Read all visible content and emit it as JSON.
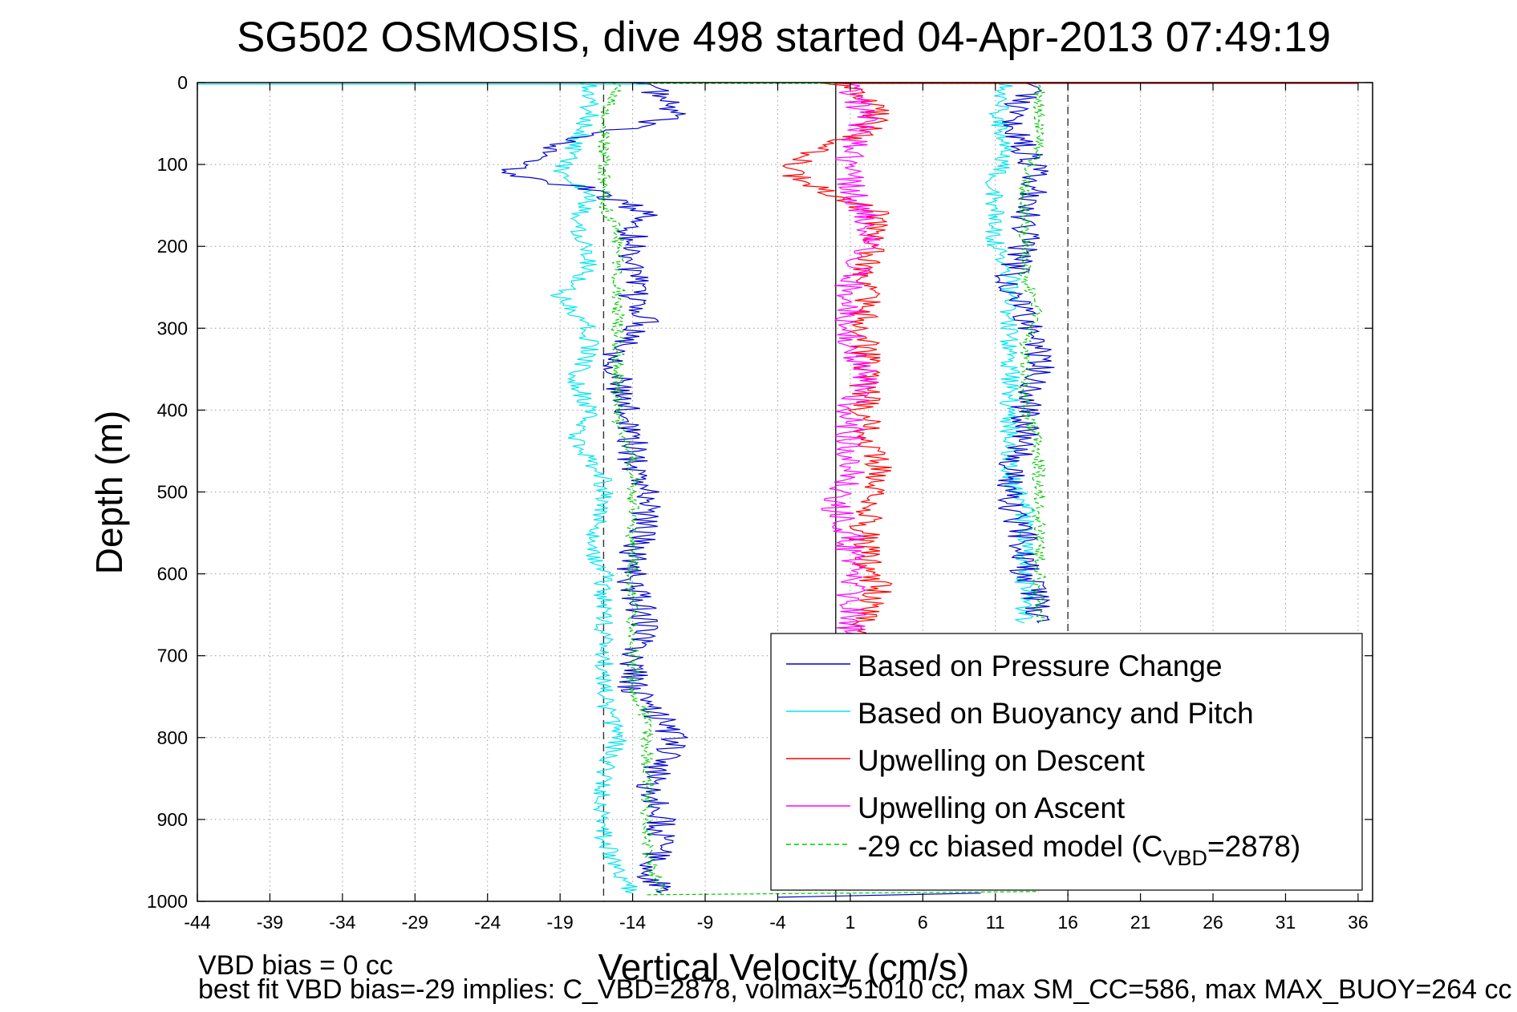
{
  "chart_data": {
    "type": "line",
    "title": "SG502 OSMOSIS, dive 498 started 04-Apr-2013 07:49:19",
    "xlabel": "Vertical Velocity (cm/s)",
    "ylabel": "Depth (m)",
    "xlim": [
      -44,
      37
    ],
    "ylim": [
      0,
      1000
    ],
    "y_reversed": true,
    "x_ticks": [
      -44,
      -39,
      -34,
      -29,
      -24,
      -19,
      -14,
      -9,
      -4,
      1,
      6,
      11,
      16,
      21,
      26,
      31,
      36
    ],
    "y_ticks": [
      0,
      100,
      200,
      300,
      400,
      500,
      600,
      700,
      800,
      900,
      1000
    ],
    "grid": true,
    "legend_position": "lower-right",
    "reference_lines": {
      "zero_x": 0,
      "dashed_x": [
        -16,
        16
      ]
    },
    "series": [
      {
        "name": "Based on Pressure Change",
        "color": "#0000cc",
        "segments": [
          {
            "depth": [
              0,
              40,
              70,
              95,
              110,
              130,
              160,
              180,
              200,
              230,
              260,
              290,
              330,
              380,
              420,
              460,
              500,
              540,
              580,
              620,
              660,
              700,
              740,
              780,
              800,
              830,
              860,
              900,
              930,
              960,
              990
            ],
            "x": [
              -13,
              -11,
              -18,
              -21,
              -23,
              -17,
              -13,
              -14,
              -14,
              -14,
              -14,
              -13,
              -15,
              -15,
              -14,
              -14,
              -13,
              -13,
              -14,
              -14,
              -13,
              -14,
              -14,
              -12,
              -11,
              -12,
              -13,
              -12,
              -12,
              -13,
              -12
            ]
          },
          {
            "depth": [
              0,
              40,
              80,
              120,
              160,
              200,
              240,
              280,
              320,
              360,
              400,
              440,
              480,
              520,
              560,
              600,
              640,
              660
            ],
            "x": [
              14,
              12,
              13,
              14,
              13,
              13,
              12,
              13,
              14,
              14,
              13,
              13,
              12,
              12,
              13,
              13,
              14,
              14
            ]
          }
        ]
      },
      {
        "name": "Based on Buoyancy and Pitch",
        "color": "#00e5ee",
        "segments": [
          {
            "depth": [
              0,
              40,
              80,
              110,
              140,
              170,
              200,
              230,
              260,
              300,
              330,
              360,
              400,
              440,
              480,
              520,
              560,
              600,
              640,
              680,
              720,
              760,
              800,
              840,
              880,
              920,
              960,
              990
            ],
            "x": [
              -17,
              -17,
              -18,
              -19,
              -17,
              -18,
              -17,
              -17,
              -19,
              -17,
              -17,
              -18,
              -17,
              -18,
              -16,
              -16,
              -17,
              -16,
              -16,
              -16,
              -16,
              -16,
              -15,
              -16,
              -16,
              -16,
              -15,
              -14
            ]
          },
          {
            "depth": [
              0,
              40,
              80,
              120,
              160,
              200,
              240,
              280,
              320,
              360,
              400,
              440,
              480,
              520,
              560,
              600,
              640,
              660
            ],
            "x": [
              12,
              11,
              12,
              11,
              11,
              11,
              12,
              12,
              12,
              12,
              12,
              12,
              12,
              13,
              13,
              13,
              13,
              13
            ]
          }
        ]
      },
      {
        "name": "Upwelling on Descent",
        "color": "#ff0000",
        "depth": [
          0,
          30,
          60,
          90,
          110,
          130,
          160,
          190,
          220,
          250,
          280,
          310,
          340,
          380,
          420,
          460,
          500,
          540,
          580,
          620,
          660,
          680
        ],
        "x": [
          0,
          3,
          2,
          -2,
          -3,
          -1,
          3,
          3,
          2,
          2,
          2,
          2,
          2,
          2,
          2,
          3,
          3,
          2,
          2,
          3,
          2,
          1
        ]
      },
      {
        "name": "Upwelling on Ascent",
        "color": "#ff00ff",
        "depth": [
          0,
          40,
          80,
          120,
          160,
          200,
          240,
          280,
          320,
          360,
          400,
          440,
          480,
          520,
          560,
          600,
          640,
          680
        ],
        "x": [
          1,
          2,
          1,
          1,
          2,
          2,
          1,
          1,
          1,
          2,
          1,
          1,
          1,
          0,
          1,
          1,
          1,
          1
        ]
      },
      {
        "name": "-29 cc biased model (C_VBD=2878)",
        "color": "#00cc00",
        "segments": [
          {
            "depth": [
              0,
              40,
              80,
              120,
              150,
              180,
              220,
              260,
              300,
              340,
              380,
              420,
              460,
              500,
              540,
              580,
              620,
              660,
              700,
              740,
              780,
              820,
              860,
              900,
              940,
              990
            ],
            "x": [
              -15,
              -16,
              -16,
              -16,
              -16,
              -15,
              -15,
              -15,
              -15,
              -15,
              -15,
              -15,
              -14,
              -14,
              -14,
              -14,
              -14,
              -14,
              -14,
              -14,
              -13,
              -13,
              -13,
              -13,
              -13,
              -12
            ]
          },
          {
            "depth": [
              0,
              40,
              80,
              120,
              160,
              200,
              240,
              280,
              320,
              360,
              400,
              440,
              480,
              520,
              560,
              600,
              640,
              660
            ],
            "x": [
              14,
              14,
              14,
              13,
              13,
              13,
              13,
              14,
              13,
              13,
              13,
              14,
              14,
              14,
              14,
              14,
              14,
              14
            ]
          }
        ]
      }
    ]
  },
  "footer": {
    "line1": "VBD bias = 0 cc",
    "line2": "best fit VBD bias=-29 implies: C_VBD=2878, volmax=51010 cc, max SM_CC=586, max MAX_BUOY=264 cc"
  },
  "legend": {
    "entries": [
      {
        "label": "Based on Pressure Change",
        "style": "solid",
        "color": "#0000cc"
      },
      {
        "label": "Based on Buoyancy and Pitch",
        "style": "solid",
        "color": "#00e5ee"
      },
      {
        "label": "Upwelling on Descent",
        "style": "solid",
        "color": "#ff0000"
      },
      {
        "label": "Upwelling on Ascent",
        "style": "solid",
        "color": "#ff00ff"
      },
      {
        "label": "-29 cc biased model (C",
        "sub": "VBD",
        "suffix": "=2878)",
        "style": "dashed",
        "color": "#00cc00"
      }
    ]
  }
}
